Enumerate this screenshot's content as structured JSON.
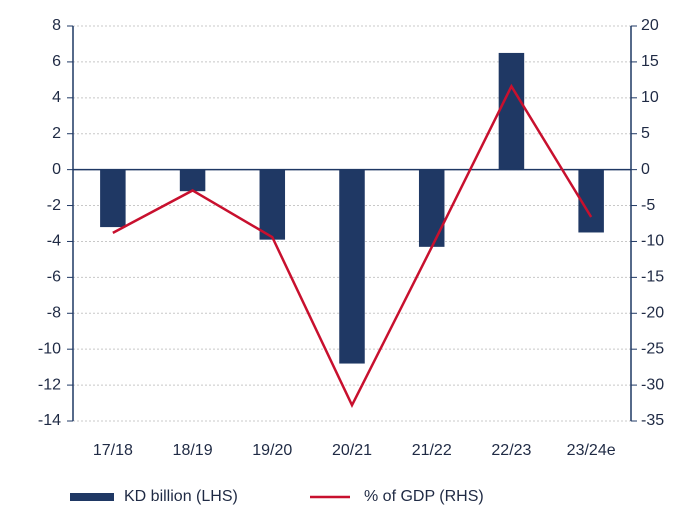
{
  "chart_data": {
    "type": "bar_line",
    "categories": [
      "17/18",
      "18/19",
      "19/20",
      "20/21",
      "21/22",
      "22/23",
      "23/24e"
    ],
    "series": [
      {
        "name": "KD billion (LHS)",
        "type": "bar",
        "color": "#1f3864",
        "values": [
          -3.2,
          -1.2,
          -3.9,
          -10.8,
          -4.3,
          6.5,
          -3.5
        ]
      },
      {
        "name": "% of GDP (RHS)",
        "type": "line",
        "axis": "y2",
        "color": "#c8102e",
        "values": [
          -8.8,
          -2.9,
          -9.4,
          -32.8,
          -10.8,
          11.6,
          -6.6
        ]
      }
    ],
    "ylim": [
      -14,
      8
    ],
    "yticks": [
      -14,
      -12,
      -10,
      -8,
      -6,
      -4,
      -2,
      0,
      2,
      4,
      6,
      8
    ],
    "y2lim": [
      -35,
      20
    ],
    "y2ticks": [
      -35,
      -30,
      -25,
      -20,
      -15,
      -10,
      -5,
      0,
      5,
      10,
      15,
      20
    ],
    "grid": true,
    "legend": "bottom"
  }
}
